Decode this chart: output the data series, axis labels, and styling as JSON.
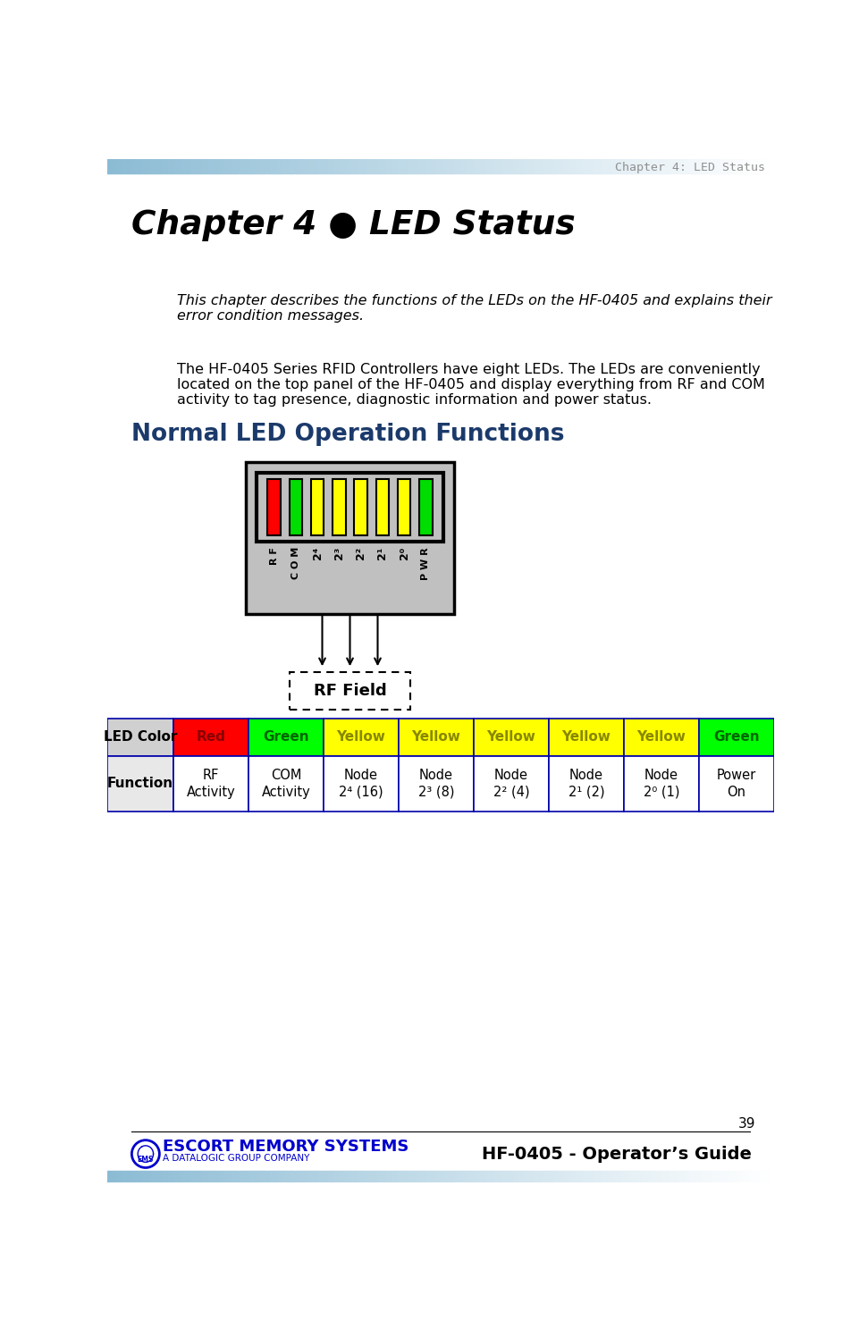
{
  "page_title": "Chapter 4: LED Status",
  "chapter_title": "Chapter 4 ● LED Status",
  "italic_text": "This chapter describes the functions of the LEDs on the HF-0405 and explains their\nerror condition messages.",
  "body_text": "The HF-0405 Series RFID Controllers have eight LEDs. The LEDs are conveniently\nlocated on the top panel of the HF-0405 and display everything from RF and COM\nactivity to tag presence, diagnostic information and power status.",
  "section_title": "Normal LED Operation Functions",
  "led_colors": [
    "#FF0000",
    "#00DD00",
    "#FFFF00",
    "#FFFF00",
    "#FFFF00",
    "#FFFF00",
    "#FFFF00",
    "#00DD00"
  ],
  "led_labels_rot": [
    "R\nF",
    "C\nO\nM",
    "2⁴",
    "2³",
    "2²",
    "2¹",
    "2⁰",
    "P\nW\nR"
  ],
  "rf_field_label": "RF Field",
  "table_headers": [
    "LED Color",
    "Red",
    "Green",
    "Yellow",
    "Yellow",
    "Yellow",
    "Yellow",
    "Yellow",
    "Green"
  ],
  "table_header_colors": [
    "#D0D0D0",
    "#FF0000",
    "#00FF00",
    "#FFFF00",
    "#FFFF00",
    "#FFFF00",
    "#FFFF00",
    "#FFFF00",
    "#00FF00"
  ],
  "table_header_text_colors": [
    "#000000",
    "#880000",
    "#006600",
    "#888800",
    "#888800",
    "#888800",
    "#888800",
    "#888800",
    "#006600"
  ],
  "table_row_label": "Function",
  "table_func_line1": [
    "RF",
    "COM",
    "Node",
    "Node",
    "Node",
    "Node",
    "Node",
    "Power"
  ],
  "table_func_line2": [
    "Activity",
    "Activity",
    "2⁴ (16)",
    "2³ (8)",
    "2² (4)",
    "2¹ (2)",
    "2⁰ (1)",
    "On"
  ],
  "footer_company": "ESCORT MEMORY SYSTEMS",
  "footer_subtitle": "A DATALOGIC GROUP COMPANY",
  "footer_guide": "HF-0405 - Operator’s Guide",
  "page_number": "39",
  "bg_color": "#FFFFFF",
  "device_bg_color": "#C0C0C0",
  "section_color": "#1B3A6B",
  "table_border_color": "#0000AA",
  "header_band_color_l": "#8BBBD4",
  "header_band_color_r": "#FFFFFF",
  "footer_band_color_l": "#8BBBD4",
  "footer_band_color_r": "#FFFFFF",
  "page_title_color": "#909090"
}
